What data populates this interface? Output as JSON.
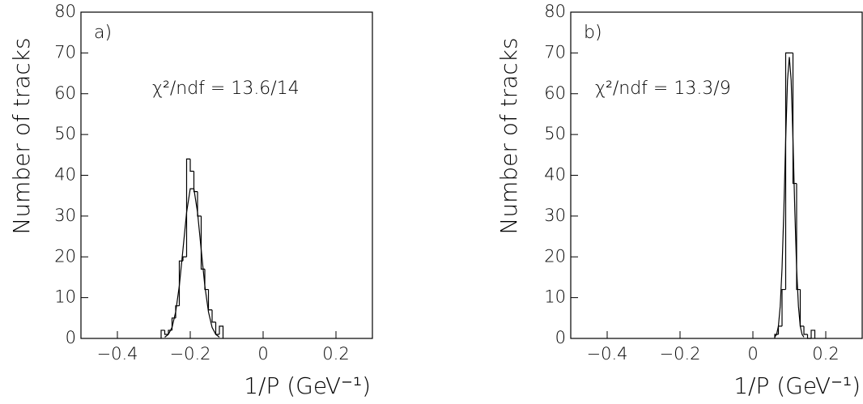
{
  "chart_data": [
    {
      "type": "histogram",
      "panel_label": "a)",
      "annotation": "χ²/ndf = 13.6/14",
      "x_label": "1/P (GeV⁻¹)",
      "y_label": "Number of tracks",
      "bins": [
        -0.28,
        -0.27,
        -0.26,
        -0.25,
        -0.24,
        -0.23,
        -0.22,
        -0.21,
        -0.2,
        -0.19,
        -0.18,
        -0.17,
        -0.16,
        -0.15,
        -0.14,
        -0.13,
        -0.12,
        -0.11
      ],
      "values": [
        2,
        1,
        2,
        5,
        8,
        19,
        20,
        44,
        41,
        36,
        30,
        17,
        12,
        7,
        4,
        1,
        3
      ],
      "fit": {
        "x": [
          -0.27,
          -0.26,
          -0.25,
          -0.24,
          -0.23,
          -0.22,
          -0.21,
          -0.2,
          -0.19,
          -0.18,
          -0.17,
          -0.16,
          -0.15,
          -0.14,
          -0.13,
          -0.12
        ],
        "values": [
          0.3,
          1.0,
          2.7,
          6.5,
          12.9,
          21.8,
          30.9,
          36.7,
          36.7,
          30.9,
          21.8,
          12.9,
          6.5,
          2.7,
          1.0,
          0.3
        ]
      },
      "xlim": [
        -0.5,
        0.3
      ],
      "ylim": [
        0,
        80
      ],
      "xticks": [
        {
          "value": -0.4,
          "label": "−0.4"
        },
        {
          "value": -0.2,
          "label": "−0.2"
        },
        0,
        0.2
      ],
      "yticks": [
        0,
        10,
        20,
        30,
        40,
        50,
        60,
        70,
        80
      ]
    },
    {
      "type": "histogram",
      "panel_label": "b)",
      "annotation": "χ²/ndf = 13.3/9",
      "x_label": "1/P (GeV⁻¹)",
      "y_label": "Number of tracks",
      "bins": [
        0.06,
        0.07,
        0.08,
        0.09,
        0.1,
        0.11,
        0.12,
        0.13,
        0.14,
        0.15,
        0.16,
        0.17
      ],
      "values": [
        1,
        3,
        12,
        70,
        70,
        38,
        12,
        3,
        1,
        0,
        2
      ],
      "fit": {
        "x": [
          0.06,
          0.065,
          0.07,
          0.075,
          0.08,
          0.085,
          0.09,
          0.095,
          0.1,
          0.105,
          0.11,
          0.115,
          0.12,
          0.125,
          0.13,
          0.135,
          0.14
        ],
        "values": [
          0.3,
          1.0,
          3.0,
          7.9,
          17.2,
          31.6,
          48.8,
          63.3,
          69,
          63.3,
          48.8,
          31.6,
          17.2,
          7.9,
          3.0,
          1.0,
          0.3
        ]
      },
      "xlim": [
        -0.5,
        0.3
      ],
      "ylim": [
        0,
        80
      ],
      "xticks": [
        {
          "value": -0.4,
          "label": "−0.4"
        },
        {
          "value": -0.2,
          "label": "−0.2"
        },
        0,
        0.2
      ],
      "yticks": [
        0,
        10,
        20,
        30,
        40,
        50,
        60,
        70,
        80
      ]
    }
  ]
}
